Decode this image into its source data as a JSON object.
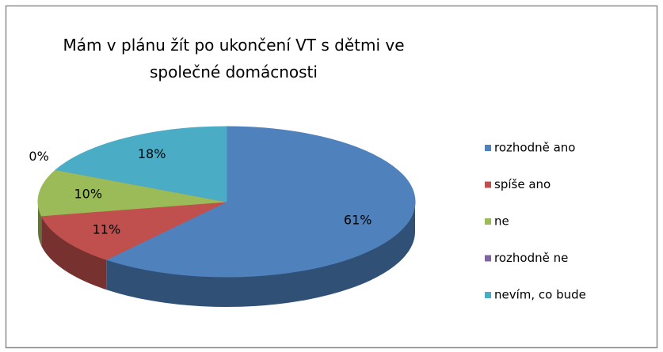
{
  "chart_data": {
    "type": "pie",
    "title": "Mám v plánu žít po ukončení VT s dětmi ve společné domácnosti",
    "categories": [
      "rozhodně ano",
      "spíše ano",
      "ne",
      "rozhodně ne",
      "nevím, co bude"
    ],
    "values": [
      61,
      11,
      10,
      0,
      18
    ],
    "value_labels": [
      "61%",
      "11%",
      "10%",
      "0%",
      "18%"
    ],
    "colors": [
      "#4f81bd",
      "#c0504d",
      "#9bbb59",
      "#8064a2",
      "#4bacc6"
    ],
    "legend": "right"
  }
}
